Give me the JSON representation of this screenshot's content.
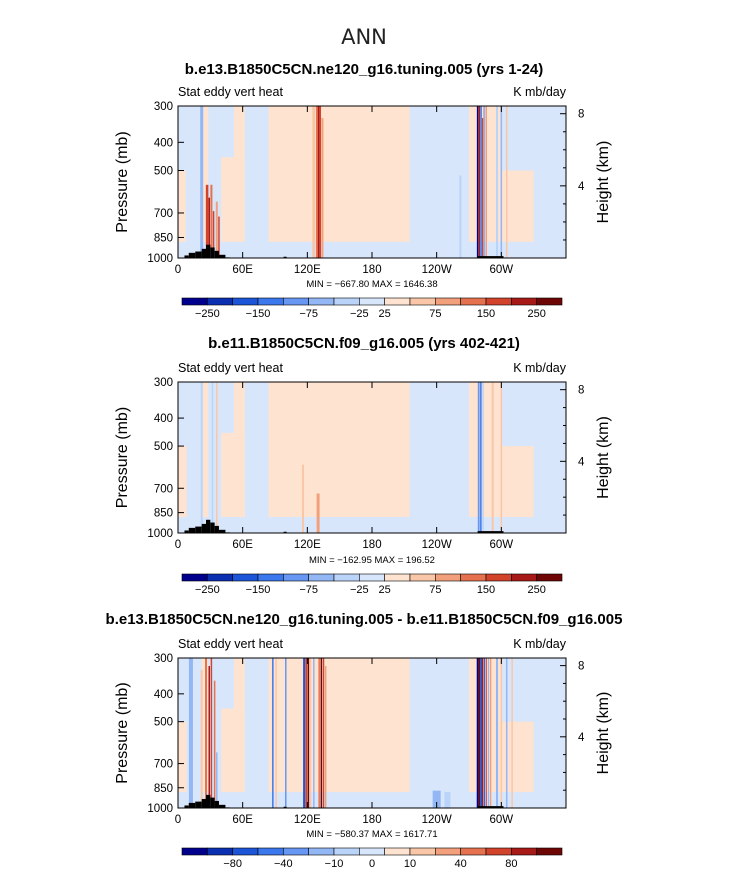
{
  "figure": {
    "title": "ANN"
  },
  "chart_data": [
    {
      "type": "heatmap",
      "title": "b.e13.B1850C5CN.ne120_g16.tuning.005 (yrs 1-24)",
      "left_label": "Stat eddy vert heat",
      "right_label": "K mb/day",
      "ylabel": "Pressure (mb)",
      "ylabel_right": "Height (km)",
      "x_ticks": [
        "0",
        "60E",
        "120E",
        "180",
        "120W",
        "60W"
      ],
      "x_tick_values": [
        0,
        60,
        120,
        180,
        240,
        300
      ],
      "xlim": [
        0,
        360
      ],
      "y_ticks": [
        "300",
        "400",
        "500",
        "700",
        "850",
        "1000"
      ],
      "y_tick_values": [
        300,
        400,
        500,
        700,
        850,
        1000
      ],
      "ylim": [
        300,
        1000
      ],
      "right_ticks": [
        "8",
        "4"
      ],
      "right_tick_values": [
        8,
        4
      ],
      "stats": "MIN = −667.80   MAX = 1646.38",
      "min": -667.8,
      "max": 1646.38,
      "background_level": [
        -25,
        25
      ],
      "colorbar_labels": [
        "−250",
        "−150",
        "−75",
        "−25",
        "25",
        "75",
        "150",
        "250"
      ]
    },
    {
      "type": "heatmap",
      "title": "b.e11.B1850C5CN.f09_g16.005 (yrs 402-421)",
      "left_label": "Stat eddy vert heat",
      "right_label": "K mb/day",
      "ylabel": "Pressure (mb)",
      "ylabel_right": "Height (km)",
      "x_ticks": [
        "0",
        "60E",
        "120E",
        "180",
        "120W",
        "60W"
      ],
      "x_tick_values": [
        0,
        60,
        120,
        180,
        240,
        300
      ],
      "xlim": [
        0,
        360
      ],
      "y_ticks": [
        "300",
        "400",
        "500",
        "700",
        "850",
        "1000"
      ],
      "y_tick_values": [
        300,
        400,
        500,
        700,
        850,
        1000
      ],
      "ylim": [
        300,
        1000
      ],
      "right_ticks": [
        "8",
        "4"
      ],
      "right_tick_values": [
        8,
        4
      ],
      "stats": "MIN = −162.95   MAX = 196.52",
      "min": -162.95,
      "max": 196.52,
      "background_level": [
        -25,
        25
      ],
      "colorbar_labels": [
        "−250",
        "−150",
        "−75",
        "−25",
        "25",
        "75",
        "150",
        "250"
      ]
    },
    {
      "type": "heatmap",
      "title": "b.e13.B1850C5CN.ne120_g16.tuning.005 - b.e11.B1850C5CN.f09_g16.005",
      "left_label": "Stat eddy vert heat",
      "right_label": "K mb/day",
      "ylabel": "Pressure (mb)",
      "ylabel_right": "Height (km)",
      "x_ticks": [
        "0",
        "60E",
        "120E",
        "180",
        "120W",
        "60W"
      ],
      "x_tick_values": [
        0,
        60,
        120,
        180,
        240,
        300
      ],
      "xlim": [
        0,
        360
      ],
      "y_ticks": [
        "300",
        "400",
        "500",
        "700",
        "850",
        "1000"
      ],
      "y_tick_values": [
        300,
        400,
        500,
        700,
        850,
        1000
      ],
      "ylim": [
        300,
        1000
      ],
      "right_ticks": [
        "8",
        "4"
      ],
      "right_tick_values": [
        8,
        4
      ],
      "stats": "MIN = −580.37   MAX = 1617.71",
      "min": -580.37,
      "max": 1617.71,
      "background_level": [
        -10,
        10
      ],
      "colorbar_labels": [
        "−80",
        "−40",
        "−10",
        "0",
        "10",
        "40",
        "80"
      ]
    }
  ],
  "colors": {
    "palette": [
      "#00008c",
      "#0a2fb0",
      "#1c55d8",
      "#3b78ee",
      "#6797f2",
      "#93b6f5",
      "#bad3f8",
      "#d7e6fb",
      "#fde3d0",
      "#f9c7a7",
      "#f2a07c",
      "#e6714e",
      "#d2432c",
      "#a71a18",
      "#6e0606"
    ],
    "neg_bg": "#d7e6fb",
    "pos_bg": "#fde3d0",
    "terrain": "#000000"
  }
}
